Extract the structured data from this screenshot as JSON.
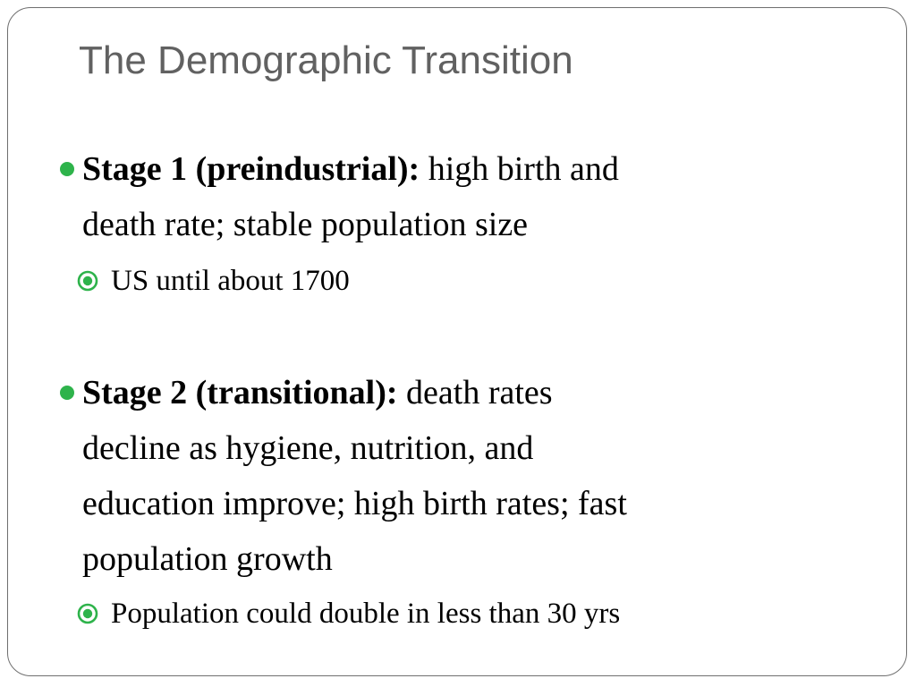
{
  "slide": {
    "title": "The Demographic Transition",
    "accent_color": "#2eb34b",
    "bullets": [
      {
        "heading": "Stage 1 (preindustrial):",
        "line1": "high birth and",
        "line2": "death rate; stable population size",
        "sub": "US until about 1700"
      },
      {
        "heading": "Stage 2 (transitional):",
        "line1": "death rates",
        "line2": "decline as hygiene, nutrition, and",
        "line3": "education improve; high birth rates; fast",
        "line4": "population growth",
        "sub": "Population could double in less than 30 yrs"
      }
    ]
  }
}
